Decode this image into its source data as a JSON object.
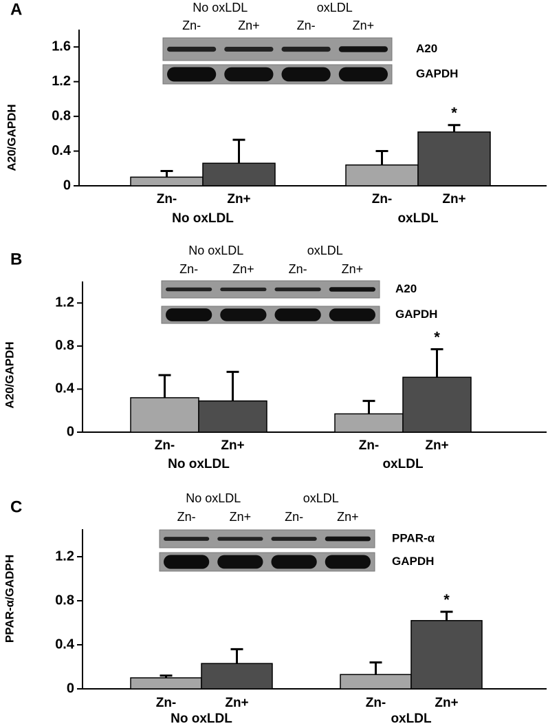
{
  "chart_data": [
    {
      "type": "bar",
      "panel": "A",
      "ylabel": "A20/GAPDH",
      "categories": [
        "Zn-",
        "Zn+",
        "Zn-",
        "Zn+"
      ],
      "groups": [
        "No oxLDL",
        "oxLDL"
      ],
      "values": [
        0.1,
        0.26,
        0.24,
        0.62
      ],
      "errors": [
        0.07,
        0.27,
        0.16,
        0.08
      ],
      "colors": [
        "#a6a6a6",
        "#4d4d4d",
        "#a6a6a6",
        "#4d4d4d"
      ],
      "ylim": [
        0,
        1.8
      ],
      "yticks": [
        0,
        0.4,
        0.8,
        1.2,
        1.6
      ],
      "annotations": [
        {
          "text": "*",
          "index": 3
        }
      ],
      "blot": {
        "groups": [
          "No oxLDL",
          "oxLDL"
        ],
        "lanes": [
          "Zn-",
          "Zn+",
          "Zn-",
          "Zn+"
        ],
        "bands": [
          "A20",
          "GAPDH"
        ]
      }
    },
    {
      "type": "bar",
      "panel": "B",
      "ylabel": "A20/GAPDH",
      "categories": [
        "Zn-",
        "Zn+",
        "Zn-",
        "Zn+"
      ],
      "groups": [
        "No oxLDL",
        "oxLDL"
      ],
      "values": [
        0.32,
        0.29,
        0.17,
        0.51
      ],
      "errors": [
        0.21,
        0.27,
        0.12,
        0.26
      ],
      "colors": [
        "#a6a6a6",
        "#4d4d4d",
        "#a6a6a6",
        "#4d4d4d"
      ],
      "ylim": [
        0,
        1.4
      ],
      "yticks": [
        0,
        0.4,
        0.8,
        1.2
      ],
      "annotations": [
        {
          "text": "*",
          "index": 3
        }
      ],
      "blot": {
        "groups": [
          "No oxLDL",
          "oxLDL"
        ],
        "lanes": [
          "Zn-",
          "Zn+",
          "Zn-",
          "Zn+"
        ],
        "bands": [
          "A20",
          "GAPDH"
        ]
      }
    },
    {
      "type": "bar",
      "panel": "C",
      "ylabel": "PPAR-α/GADPH",
      "categories": [
        "Zn-",
        "Zn+",
        "Zn-",
        "Zn+"
      ],
      "groups": [
        "No oxLDL",
        "oxLDL"
      ],
      "values": [
        0.1,
        0.23,
        0.13,
        0.62
      ],
      "errors": [
        0.02,
        0.13,
        0.11,
        0.08
      ],
      "colors": [
        "#a6a6a6",
        "#4d4d4d",
        "#a6a6a6",
        "#4d4d4d"
      ],
      "ylim": [
        0,
        1.45
      ],
      "yticks": [
        0,
        0.4,
        0.8,
        1.2
      ],
      "annotations": [
        {
          "text": "*",
          "index": 3
        }
      ],
      "blot": {
        "groups": [
          "No oxLDL",
          "oxLDL"
        ],
        "lanes": [
          "Zn-",
          "Zn+",
          "Zn-",
          "Zn+"
        ],
        "bands": [
          "PPAR-α",
          "GAPDH"
        ]
      }
    }
  ]
}
